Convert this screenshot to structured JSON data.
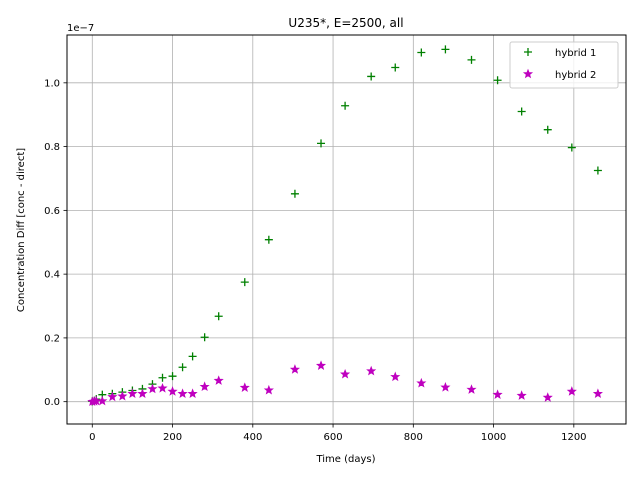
{
  "chart_data": {
    "type": "scatter",
    "title": "U235*, E=2500, all",
    "xlabel": "Time (days)",
    "ylabel": "Concentration Diff [conc - direct]",
    "y_offset_label": "1e−7",
    "y_scale_factor": 1e-07,
    "xlim": [
      -63,
      1330
    ],
    "ylim": [
      -0.07,
      1.15
    ],
    "xticks": [
      0,
      200,
      400,
      600,
      800,
      1000,
      1200
    ],
    "xtick_labels": [
      "0",
      "200",
      "400",
      "600",
      "800",
      "1000",
      "1200"
    ],
    "yticks": [
      0.0,
      0.2,
      0.4,
      0.6,
      0.8,
      1.0
    ],
    "ytick_labels": [
      "0.0",
      "0.2",
      "0.4",
      "0.6",
      "0.8",
      "1.0"
    ],
    "grid": true,
    "legend_position": "top-right",
    "series": [
      {
        "name": "hybrid 1",
        "marker": "plus",
        "color": "#008000",
        "x": [
          0,
          5,
          10,
          25,
          50,
          75,
          100,
          125,
          150,
          175,
          200,
          225,
          250,
          280,
          315,
          380,
          440,
          505,
          570,
          630,
          695,
          755,
          820,
          880,
          945,
          1010,
          1070,
          1135,
          1195,
          1260
        ],
        "y": [
          0.001,
          0.003,
          0.008,
          0.022,
          0.025,
          0.03,
          0.035,
          0.04,
          0.055,
          0.075,
          0.08,
          0.108,
          0.142,
          0.202,
          0.268,
          0.375,
          0.508,
          0.652,
          0.81,
          0.928,
          1.02,
          1.048,
          1.095,
          1.105,
          1.072,
          1.008,
          0.91,
          0.853,
          0.797,
          0.725
        ]
      },
      {
        "name": "hybrid 2",
        "marker": "star",
        "color": "#bf00bf",
        "x": [
          0,
          5,
          10,
          25,
          50,
          75,
          100,
          125,
          150,
          175,
          200,
          225,
          250,
          280,
          315,
          380,
          440,
          505,
          570,
          630,
          695,
          755,
          820,
          880,
          945,
          1010,
          1070,
          1135,
          1195,
          1260
        ],
        "y": [
          0.0,
          0.001,
          0.002,
          0.002,
          0.015,
          0.017,
          0.025,
          0.025,
          0.04,
          0.042,
          0.032,
          0.025,
          0.025,
          0.047,
          0.066,
          0.044,
          0.036,
          0.101,
          0.113,
          0.086,
          0.096,
          0.078,
          0.058,
          0.045,
          0.038,
          0.022,
          0.019,
          0.013,
          0.032,
          0.025
        ]
      }
    ]
  }
}
